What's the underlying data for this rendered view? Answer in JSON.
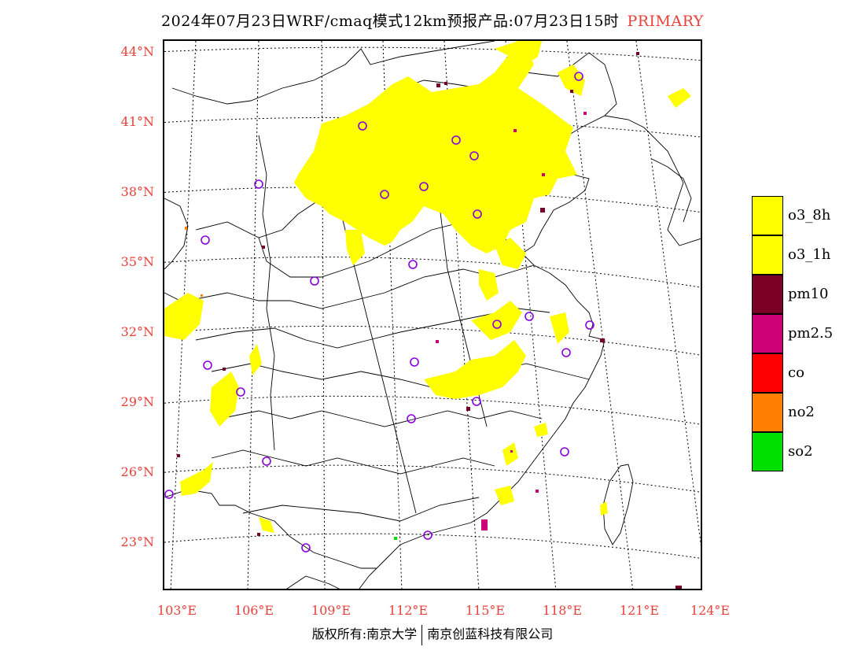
{
  "title": {
    "text": "2024年07月23日WRF/cmaq模式12km预报产品:07月23日15时",
    "tag": "PRIMARY"
  },
  "colors": {
    "o3_8h": "#ffff00",
    "o3_1h": "#ffff00",
    "pm10": "#7a0026",
    "pm2_5": "#cc0077",
    "co": "#ff0000",
    "no2": "#ff8000",
    "so2": "#00e000",
    "axis_label": "#e8413b",
    "station_marker": "#8800dd"
  },
  "lat_labels": [
    "44°N",
    "41°N",
    "38°N",
    "35°N",
    "32°N",
    "29°N",
    "26°N",
    "23°N"
  ],
  "lon_labels": [
    "103°E",
    "106°E",
    "109°E",
    "112°E",
    "115°E",
    "118°E",
    "121°E",
    "124°E"
  ],
  "legend": [
    {
      "label": "o3_8h",
      "color": "#ffff00"
    },
    {
      "label": "o3_1h",
      "color": "#ffff00"
    },
    {
      "label": "pm10",
      "color": "#7a0026"
    },
    {
      "label": "pm2.5",
      "color": "#cc0077"
    },
    {
      "label": "co",
      "color": "#ff0000"
    },
    {
      "label": "no2",
      "color": "#ff8000"
    },
    {
      "label": "so2",
      "color": "#00e000"
    }
  ],
  "footer": {
    "left": "版权所有:南京大学",
    "right": "南京创蓝科技有限公司"
  }
}
